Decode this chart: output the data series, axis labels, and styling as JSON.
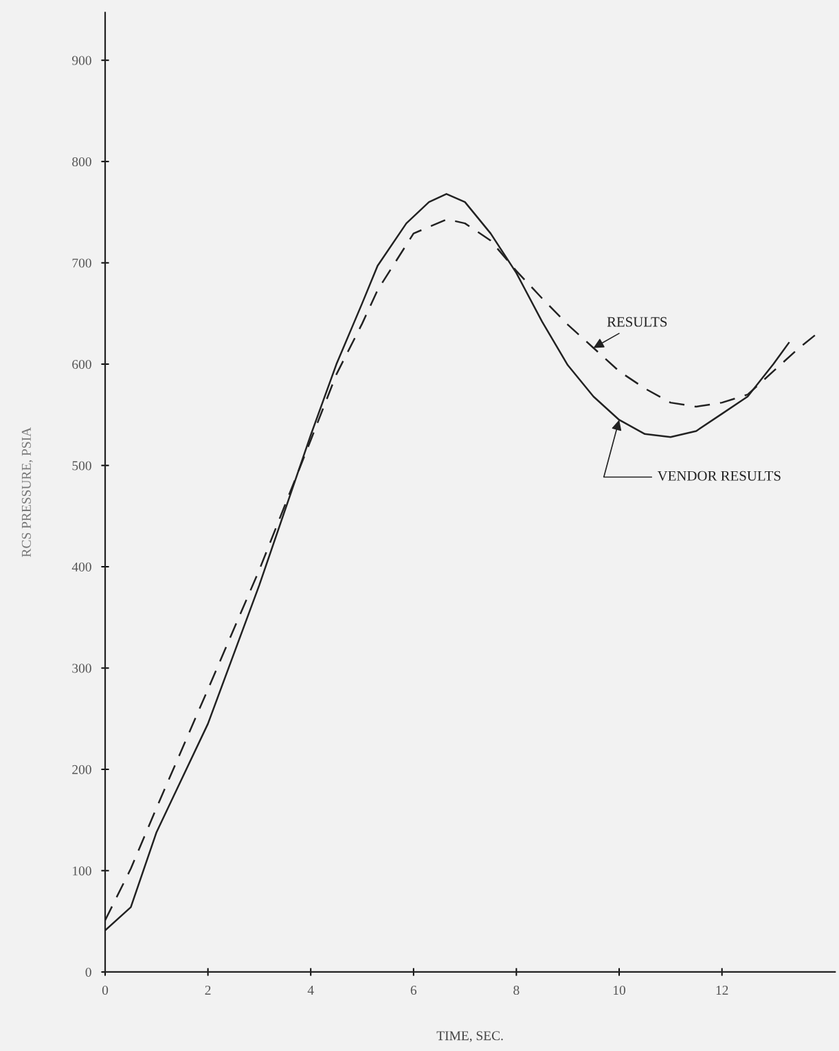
{
  "chart_data": {
    "type": "line",
    "xlabel": "TIME, SEC.",
    "ylabel": "RCS PRESSURE, PSIA",
    "xlim": [
      0,
      14.2
    ],
    "xticks": [
      0,
      2,
      4,
      6,
      8,
      10,
      12
    ],
    "ylim": [
      0,
      947
    ],
    "yticks": [
      0,
      100,
      200,
      300,
      400,
      500,
      600,
      700,
      800,
      900
    ],
    "grid": false,
    "legend": false,
    "marker": "none",
    "series": [
      {
        "name": "RESULTS",
        "color": "#222222",
        "line_style": "dashed",
        "x": [
          0,
          0.5,
          1,
          2,
          3,
          4,
          4.5,
          5,
          5.3,
          6,
          6.65,
          7,
          7.5,
          8,
          8.5,
          9,
          9.5,
          10,
          10.5,
          11,
          11.5,
          12,
          12.5,
          13,
          13.5,
          13.87
        ],
        "values": [
          51,
          102,
          162,
          279,
          397,
          525,
          590,
          640,
          673,
          729,
          743,
          739,
          722,
          692,
          665,
          639,
          616,
          593,
          576,
          562,
          558,
          562,
          570,
          593,
          616,
          631
        ]
      },
      {
        "name": "VENDOR RESULTS",
        "color": "#222222",
        "line_style": "solid",
        "x": [
          0,
          0.5,
          1,
          2,
          3,
          4,
          4.5,
          5,
          5.3,
          5.86,
          6.3,
          6.64,
          7,
          7.5,
          8,
          8.5,
          9,
          9.5,
          10,
          10.5,
          11,
          11.5,
          12,
          12.5,
          13,
          13.3
        ],
        "values": [
          41,
          64,
          138,
          245,
          382,
          530,
          600,
          660,
          697,
          739,
          760,
          768,
          760,
          729,
          690,
          642,
          599,
          568,
          545,
          531,
          528,
          534,
          551,
          568,
          600,
          621
        ]
      }
    ]
  }
}
